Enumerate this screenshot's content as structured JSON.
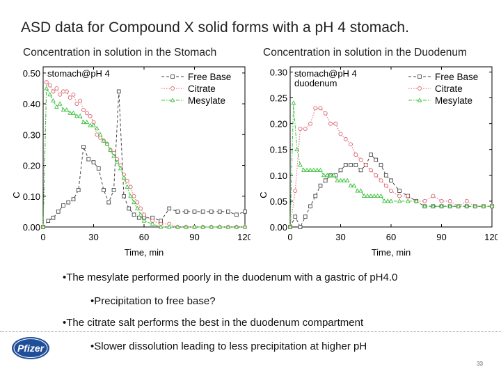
{
  "slide": {
    "title": "ASD data for Compound X solid forms with a pH 4 stomach.",
    "bullets": [
      {
        "text": "The mesylate performed poorly in the duodenum with a gastric of pH4.0",
        "level": 1
      },
      {
        "text": "Precipitation to free base?",
        "level": 2
      },
      {
        "text": "The citrate salt performs the best in the duodenum compartment",
        "level": 1
      },
      {
        "text": "Slower dissolution leading to less precipitation at higher pH",
        "level": 2
      }
    ],
    "bullet_char": "•",
    "logo_text": "Pfizer",
    "page_number": "33"
  },
  "colors": {
    "free_base": "#444444",
    "citrate": "#d9606a",
    "mesylate": "#3cc23c",
    "logo_blue": "#1f4e9a"
  },
  "chart_data": [
    {
      "type": "line",
      "title": "Concentration in solution in the Stomach",
      "annotation": "stomach@pH 4",
      "xlabel": "Time, min",
      "ylabel": "C",
      "xlim": [
        0,
        120
      ],
      "ylim": [
        0,
        0.52
      ],
      "xticks": [
        "0",
        "30",
        "60",
        "90",
        "120"
      ],
      "yticks": [
        "0.00",
        "0.10",
        "0.20",
        "0.30",
        "0.40",
        "0.50"
      ],
      "legend_position": "top-right",
      "series": [
        {
          "name": "Free Base",
          "style": "dashed-square",
          "x": [
            0,
            3,
            6,
            9,
            12,
            15,
            18,
            21,
            24,
            27,
            30,
            33,
            36,
            39,
            42,
            45,
            48,
            51,
            54,
            57,
            60,
            65,
            70,
            75,
            80,
            85,
            90,
            95,
            100,
            105,
            110,
            115,
            120
          ],
          "y": [
            0.0,
            0.02,
            0.03,
            0.05,
            0.07,
            0.08,
            0.09,
            0.12,
            0.26,
            0.22,
            0.21,
            0.19,
            0.12,
            0.08,
            0.12,
            0.44,
            0.1,
            0.06,
            0.04,
            0.03,
            0.03,
            0.03,
            0.02,
            0.06,
            0.05,
            0.05,
            0.05,
            0.05,
            0.05,
            0.05,
            0.05,
            0.04,
            0.05
          ]
        },
        {
          "name": "Citrate",
          "style": "dotted-circle",
          "x": [
            0,
            2,
            4,
            6,
            8,
            10,
            12,
            14,
            16,
            18,
            20,
            22,
            24,
            26,
            28,
            30,
            32,
            34,
            36,
            38,
            40,
            42,
            44,
            46,
            48,
            50,
            52,
            54,
            56,
            58,
            60,
            65,
            70,
            75,
            80,
            85,
            90,
            95,
            100,
            105,
            110,
            115,
            120
          ],
          "y": [
            0.0,
            0.47,
            0.46,
            0.44,
            0.45,
            0.43,
            0.44,
            0.44,
            0.42,
            0.43,
            0.4,
            0.41,
            0.38,
            0.37,
            0.36,
            0.34,
            0.3,
            0.29,
            0.28,
            0.27,
            0.25,
            0.24,
            0.22,
            0.2,
            0.17,
            0.15,
            0.13,
            0.1,
            0.08,
            0.06,
            0.04,
            0.02,
            0.01,
            0.01,
            0.0,
            0.0,
            0.0,
            0.0,
            0.0,
            0.0,
            0.0,
            0.0,
            0.0
          ]
        },
        {
          "name": "Mesylate",
          "style": "dashdot-triangle",
          "x": [
            0,
            2,
            4,
            6,
            8,
            10,
            12,
            14,
            16,
            18,
            20,
            22,
            24,
            26,
            28,
            30,
            32,
            34,
            36,
            38,
            40,
            42,
            44,
            46,
            48,
            50,
            52,
            54,
            56,
            58,
            60,
            65,
            70,
            75,
            80,
            85,
            90,
            95,
            100,
            105,
            110,
            115,
            120
          ],
          "y": [
            0.0,
            0.45,
            0.43,
            0.41,
            0.39,
            0.4,
            0.38,
            0.38,
            0.37,
            0.37,
            0.36,
            0.36,
            0.34,
            0.34,
            0.33,
            0.33,
            0.32,
            0.3,
            0.28,
            0.27,
            0.25,
            0.23,
            0.21,
            0.19,
            0.16,
            0.13,
            0.1,
            0.08,
            0.06,
            0.04,
            0.02,
            0.01,
            0.0,
            0.0,
            0.0,
            0.0,
            0.0,
            0.0,
            0.0,
            0.0,
            0.0,
            0.0,
            0.0
          ]
        }
      ]
    },
    {
      "type": "line",
      "title": "Concentration in solution in the Duodenum",
      "annotation": "stomach@pH 4\nduodenum",
      "xlabel": "Time, min",
      "ylabel": "C",
      "xlim": [
        0,
        120
      ],
      "ylim": [
        0,
        0.31
      ],
      "xticks": [
        "0",
        "30",
        "60",
        "90",
        "120"
      ],
      "yticks": [
        "0.00",
        "0.05",
        "0.10",
        "0.15",
        "0.20",
        "0.25",
        "0.30"
      ],
      "legend_position": "top-right",
      "series": [
        {
          "name": "Free Base",
          "style": "dashed-square",
          "x": [
            0,
            3,
            6,
            9,
            12,
            15,
            18,
            21,
            24,
            27,
            30,
            33,
            36,
            39,
            42,
            45,
            48,
            51,
            54,
            57,
            60,
            65,
            70,
            75,
            80,
            85,
            90,
            95,
            100,
            105,
            110,
            115,
            120
          ],
          "y": [
            0.0,
            0.02,
            0.0,
            0.02,
            0.04,
            0.06,
            0.08,
            0.09,
            0.1,
            0.1,
            0.11,
            0.12,
            0.12,
            0.12,
            0.11,
            0.12,
            0.14,
            0.13,
            0.12,
            0.1,
            0.09,
            0.07,
            0.06,
            0.05,
            0.04,
            0.04,
            0.04,
            0.04,
            0.04,
            0.04,
            0.04,
            0.04,
            0.04
          ]
        },
        {
          "name": "Citrate",
          "style": "dotted-circle",
          "x": [
            0,
            3,
            6,
            9,
            12,
            15,
            18,
            21,
            24,
            27,
            30,
            33,
            36,
            39,
            42,
            45,
            48,
            51,
            54,
            57,
            60,
            65,
            70,
            75,
            80,
            85,
            90,
            95,
            100,
            105,
            110,
            115,
            120
          ],
          "y": [
            0.0,
            0.07,
            0.19,
            0.19,
            0.2,
            0.23,
            0.23,
            0.22,
            0.2,
            0.2,
            0.18,
            0.17,
            0.16,
            0.14,
            0.13,
            0.12,
            0.11,
            0.1,
            0.09,
            0.08,
            0.07,
            0.06,
            0.06,
            0.05,
            0.05,
            0.06,
            0.05,
            0.05,
            0.04,
            0.05,
            0.04,
            0.04,
            0.04
          ]
        },
        {
          "name": "Mesylate",
          "style": "dashdot-triangle",
          "x": [
            0,
            2,
            4,
            6,
            8,
            10,
            12,
            14,
            16,
            18,
            20,
            22,
            24,
            26,
            28,
            30,
            32,
            34,
            36,
            38,
            40,
            42,
            44,
            46,
            48,
            50,
            52,
            54,
            56,
            58,
            60,
            65,
            70,
            75,
            80,
            85,
            90,
            95,
            100,
            105,
            110,
            115,
            120
          ],
          "y": [
            0.0,
            0.24,
            0.15,
            0.12,
            0.11,
            0.11,
            0.11,
            0.11,
            0.11,
            0.11,
            0.1,
            0.1,
            0.1,
            0.1,
            0.09,
            0.09,
            0.09,
            0.09,
            0.08,
            0.08,
            0.07,
            0.07,
            0.06,
            0.06,
            0.06,
            0.06,
            0.06,
            0.06,
            0.05,
            0.05,
            0.05,
            0.05,
            0.05,
            0.05,
            0.04,
            0.04,
            0.04,
            0.04,
            0.04,
            0.04,
            0.04,
            0.04,
            0.04
          ]
        }
      ]
    }
  ]
}
